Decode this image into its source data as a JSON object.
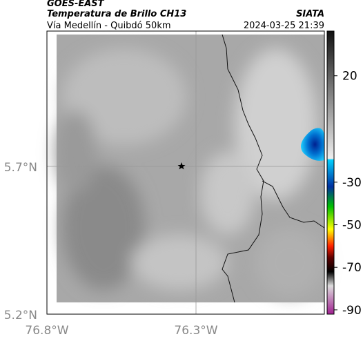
{
  "header": {
    "source": "GOES-EAST",
    "product": "Temperatura de Brillo CH13",
    "region": "Vía Medellín - Quibdó 50km",
    "brand": "SIATA",
    "datetime": "2024-03-25 21:39"
  },
  "map": {
    "lat_labels": [
      "5.7°N",
      "5.2°N"
    ],
    "lon_labels": [
      "76.8°W",
      "76.3°W"
    ]
  },
  "colorbar": {
    "lim": [
      41,
      -92
    ],
    "ticks": [
      20,
      -30,
      -50,
      -70,
      -90
    ]
  }
}
